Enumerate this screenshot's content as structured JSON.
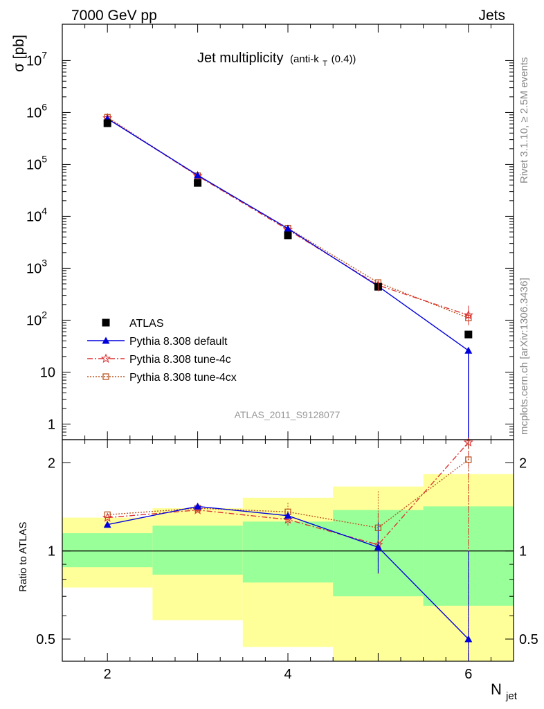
{
  "header": {
    "left": "7000 GeV pp",
    "right": "Jets"
  },
  "plot_title": {
    "main": "Jet multiplicity",
    "sub_prefix": "(anti-k",
    "sub_index": "T",
    "sub_suffix": "(0.4))"
  },
  "side_text": {
    "rivet": "Rivet 3.1.10, ≥ 2.5M events",
    "mcplots": "mcplots.cern.ch [arXiv:1306.3436]"
  },
  "watermark": "ATLAS_2011_S9128077",
  "colors": {
    "data": "#000000",
    "default": "#0000dd",
    "tune4c": "#dd3333",
    "tune4cx": "#bb5522",
    "band_inner": "#99ff99",
    "band_outer": "#ffff99"
  },
  "chart_data": [
    {
      "type": "scatter",
      "ylabel": "σ [pb]",
      "yscale": "log",
      "xlim": [
        1.5,
        6.5
      ],
      "ylim": [
        0.5,
        50000000
      ],
      "x_ticks": [
        2,
        3,
        4,
        5,
        6
      ],
      "y_tick_labels": [
        {
          "v": 1,
          "main": "1",
          "exp": ""
        },
        {
          "v": 10,
          "main": "10",
          "exp": ""
        },
        {
          "v": 100,
          "main": "10",
          "exp": "2"
        },
        {
          "v": 1000,
          "main": "10",
          "exp": "3"
        },
        {
          "v": 10000,
          "main": "10",
          "exp": "4"
        },
        {
          "v": 100000,
          "main": "10",
          "exp": "5"
        },
        {
          "v": 1000000,
          "main": "10",
          "exp": "6"
        },
        {
          "v": 10000000,
          "main": "10",
          "exp": "7"
        }
      ],
      "legend_position": "bottom-left",
      "series": [
        {
          "key": "data",
          "name": "ATLAS",
          "x": [
            2,
            3,
            4,
            5,
            6
          ],
          "y": [
            620000,
            44000,
            4300,
            440,
            53
          ]
        },
        {
          "key": "default",
          "name": "Pythia 8.308 default",
          "x": [
            2,
            3,
            4,
            5,
            6
          ],
          "y": [
            760000,
            62000,
            5800,
            450,
            26
          ]
        },
        {
          "key": "tune4c",
          "name": "Pythia 8.308 tune-4c",
          "x": [
            2,
            3,
            4,
            5,
            6
          ],
          "y": [
            780000,
            60000,
            5500,
            470,
            125
          ]
        },
        {
          "key": "tune4cx",
          "name": "Pythia 8.308 tune-4cx",
          "x": [
            2,
            3,
            4,
            5,
            6
          ],
          "y": [
            810000,
            60500,
            5900,
            530,
            110
          ]
        }
      ]
    },
    {
      "type": "line",
      "xlabel": "N",
      "xlabel_sub": "jet",
      "ylabel": "Ratio to ATLAS",
      "yscale": "log",
      "xlim": [
        1.5,
        6.5
      ],
      "ylim": [
        0.42,
        2.4
      ],
      "x_tick_labels": [
        "2",
        "4",
        "6"
      ],
      "x_tick_values": [
        2,
        4,
        6
      ],
      "y_tick_labels": [
        {
          "v": 0.5,
          "label": "0.5"
        },
        {
          "v": 1,
          "label": "1"
        },
        {
          "v": 2,
          "label": "2"
        }
      ],
      "bands": [
        {
          "x": [
            1.5,
            2.5
          ],
          "inner": [
            0.88,
            1.15
          ],
          "outer": [
            0.75,
            1.3
          ]
        },
        {
          "x": [
            2.5,
            3.5
          ],
          "inner": [
            0.83,
            1.22
          ],
          "outer": [
            0.58,
            1.4
          ]
        },
        {
          "x": [
            3.5,
            4.5
          ],
          "inner": [
            0.78,
            1.26
          ],
          "outer": [
            0.47,
            1.52
          ]
        },
        {
          "x": [
            4.5,
            5.5
          ],
          "inner": [
            0.7,
            1.38
          ],
          "outer": [
            0.3,
            1.66
          ]
        },
        {
          "x": [
            5.5,
            6.5
          ],
          "inner": [
            0.65,
            1.42
          ],
          "outer": [
            0.3,
            1.83
          ]
        }
      ],
      "series": [
        {
          "key": "default",
          "name": "Pythia 8.308 default",
          "x": [
            2,
            3,
            4,
            5,
            6
          ],
          "y": [
            1.23,
            1.42,
            1.32,
            1.03,
            0.5
          ]
        },
        {
          "key": "tune4c",
          "name": "Pythia 8.308 tune-4c",
          "x": [
            2,
            3,
            4,
            5,
            6
          ],
          "y": [
            1.3,
            1.38,
            1.28,
            1.05,
            2.35
          ]
        },
        {
          "key": "tune4cx",
          "name": "Pythia 8.308 tune-4cx",
          "x": [
            2,
            3,
            4,
            5,
            6
          ],
          "y": [
            1.33,
            1.4,
            1.36,
            1.2,
            2.05
          ]
        }
      ]
    }
  ]
}
